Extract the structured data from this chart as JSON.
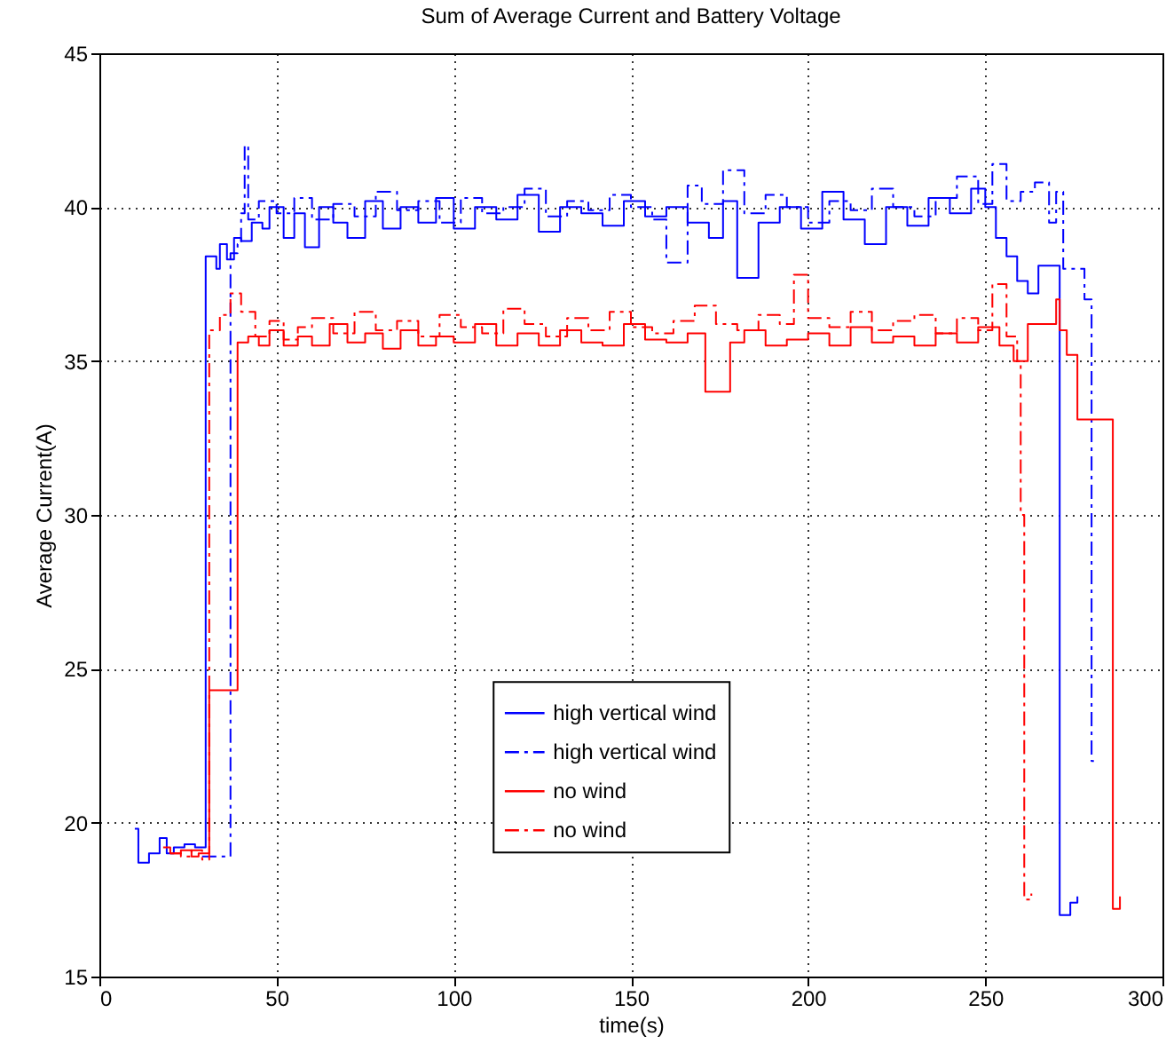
{
  "chart_data": {
    "type": "step",
    "title": "Sum of Average Current and Battery Voltage",
    "xlabel": "time(s)",
    "ylabel": "Average Current(A)",
    "xlim": [
      0,
      300
    ],
    "xticks": [
      0,
      50,
      100,
      150,
      200,
      250,
      300
    ],
    "ylim": [
      15,
      45
    ],
    "yticks": [
      15,
      20,
      25,
      30,
      35,
      40,
      45
    ],
    "grid": true,
    "legend": "bottom",
    "series": [
      {
        "name": "high vertical wind",
        "color": "#0000ff",
        "line_style": "solid",
        "x": [
          10,
          11,
          14,
          17,
          19,
          21,
          24,
          27,
          30,
          33,
          34,
          36,
          38,
          40,
          43,
          46,
          48,
          52,
          55,
          58,
          62,
          66,
          70,
          75,
          80,
          85,
          90,
          95,
          100,
          106,
          112,
          118,
          124,
          130,
          136,
          142,
          148,
          154,
          160,
          166,
          172,
          176,
          180,
          186,
          192,
          198,
          204,
          210,
          216,
          222,
          228,
          234,
          240,
          246,
          250,
          253,
          256,
          259,
          262,
          265,
          271,
          274,
          276
        ],
        "values": [
          19.8,
          18.7,
          19,
          19.5,
          19,
          19.2,
          19.3,
          19.2,
          38.4,
          38,
          38.8,
          38.3,
          39,
          38.9,
          39.5,
          39.3,
          40,
          39,
          39.8,
          38.7,
          40,
          39.5,
          39,
          40.2,
          39.3,
          40,
          39.5,
          40.3,
          39.3,
          40,
          39.6,
          40.4,
          39.2,
          40,
          39.8,
          39.4,
          40.2,
          39.7,
          40,
          39.5,
          39,
          40.2,
          37.7,
          39.5,
          40,
          39.3,
          40.5,
          39.6,
          38.8,
          40,
          39.4,
          40.3,
          39.8,
          40.6,
          40,
          39,
          38.4,
          37.6,
          37.2,
          38.1,
          17,
          17.4,
          17.6
        ]
      },
      {
        "name": "high vertical wind",
        "color": "#0000ff",
        "line_style": "dashed",
        "x": [
          29,
          37,
          39,
          40,
          41,
          42,
          45,
          50,
          55,
          60,
          66,
          72,
          78,
          84,
          90,
          96,
          102,
          108,
          114,
          120,
          126,
          132,
          138,
          144,
          150,
          156,
          160,
          166,
          170,
          176,
          182,
          188,
          194,
          200,
          206,
          212,
          218,
          224,
          230,
          236,
          242,
          248,
          252,
          256,
          260,
          264,
          268,
          270,
          272,
          278,
          280,
          281
        ],
        "values": [
          18.9,
          38.5,
          38.8,
          39.8,
          42,
          39.6,
          40.2,
          39.8,
          40.3,
          39.6,
          40.1,
          39.7,
          40.5,
          39.9,
          40.2,
          39.5,
          40.3,
          39.8,
          40,
          40.6,
          39.7,
          40.2,
          39.9,
          40.4,
          40,
          39.6,
          38.2,
          40.7,
          40.1,
          41.2,
          39.8,
          40.4,
          40,
          39.5,
          40.2,
          39.9,
          40.6,
          40,
          39.7,
          40.3,
          41,
          40.1,
          41.4,
          40.2,
          40.5,
          40.8,
          39.5,
          40.5,
          38,
          37,
          22,
          22
        ]
      },
      {
        "name": "no wind",
        "color": "#ff0000",
        "line_style": "solid",
        "x": [
          18,
          20,
          23,
          26,
          28,
          31,
          39,
          42,
          45,
          48,
          52,
          56,
          60,
          65,
          70,
          75,
          80,
          85,
          90,
          95,
          100,
          106,
          112,
          118,
          124,
          130,
          136,
          142,
          148,
          154,
          160,
          166,
          171,
          178,
          182,
          188,
          194,
          200,
          206,
          212,
          218,
          224,
          230,
          236,
          242,
          248,
          254,
          258,
          262,
          266,
          270,
          271,
          273,
          276,
          278,
          286,
          288
        ],
        "values": [
          19.2,
          19,
          19.1,
          18.9,
          19,
          24.3,
          35.6,
          35.8,
          35.5,
          36,
          35.5,
          35.8,
          35.5,
          36.2,
          35.6,
          35.9,
          35.4,
          36,
          35.5,
          35.8,
          35.6,
          36.2,
          35.5,
          35.9,
          35.5,
          36,
          35.6,
          35.5,
          36.2,
          35.7,
          35.6,
          35.9,
          34,
          35.6,
          36,
          35.5,
          35.7,
          35.9,
          35.5,
          36.1,
          35.6,
          35.8,
          35.5,
          35.9,
          35.6,
          36.1,
          35.5,
          35,
          36.2,
          36.2,
          37,
          36,
          35.2,
          33.1,
          33.1,
          17.2,
          17.6
        ]
      },
      {
        "name": "no wind",
        "color": "#ff0000",
        "line_style": "dashed",
        "x": [
          20,
          23,
          26,
          29,
          31,
          34,
          37,
          40,
          44,
          48,
          52,
          56,
          60,
          66,
          72,
          78,
          84,
          90,
          96,
          102,
          108,
          114,
          120,
          126,
          132,
          138,
          144,
          150,
          156,
          162,
          168,
          174,
          180,
          186,
          192,
          196,
          200,
          206,
          212,
          218,
          224,
          230,
          236,
          242,
          248,
          252,
          256,
          259,
          260,
          261,
          263
        ],
        "values": [
          19,
          18.9,
          19.1,
          18.8,
          36,
          36.5,
          37.2,
          36.6,
          35.8,
          36.3,
          35.7,
          36.1,
          36.4,
          35.9,
          36.6,
          36,
          36.3,
          35.8,
          36.5,
          36.1,
          35.9,
          36.7,
          36.2,
          35.8,
          36.4,
          36,
          36.6,
          36.1,
          35.9,
          36.3,
          36.8,
          36.2,
          36,
          36.5,
          36.2,
          37.8,
          36.4,
          36.1,
          36.6,
          36,
          36.3,
          36.5,
          35.9,
          36.4,
          36,
          37.5,
          35.8,
          35,
          30,
          17.5,
          17.7
        ]
      }
    ]
  }
}
